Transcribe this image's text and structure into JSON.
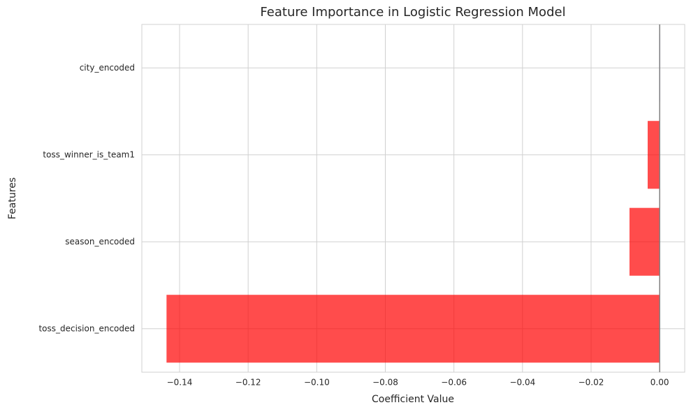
{
  "chart_data": {
    "type": "barh",
    "title": "Feature Importance in Logistic Regression Model",
    "x_label": "Coefficient Value",
    "y_label": "Features",
    "categories": [
      "toss_decision_encoded",
      "season_encoded",
      "toss_winner_is_team1",
      "city_encoded"
    ],
    "values": [
      -0.1438,
      -0.0088,
      -0.0035,
      0.0001
    ],
    "colors": [
      "#ff0000",
      "#ff0000",
      "#ff0000",
      "#0000ff"
    ],
    "opacity": 0.7,
    "xlim": [
      -0.151,
      0.0073
    ],
    "xticks": [
      {
        "value": -0.14,
        "label": "−0.14"
      },
      {
        "value": -0.12,
        "label": "−0.12"
      },
      {
        "value": -0.1,
        "label": "−0.10"
      },
      {
        "value": -0.08,
        "label": "−0.08"
      },
      {
        "value": -0.06,
        "label": "−0.06"
      },
      {
        "value": -0.04,
        "label": "−0.04"
      },
      {
        "value": -0.02,
        "label": "−0.02"
      },
      {
        "value": 0,
        "label": "0.00"
      }
    ],
    "grid": true,
    "zero_line": true
  }
}
